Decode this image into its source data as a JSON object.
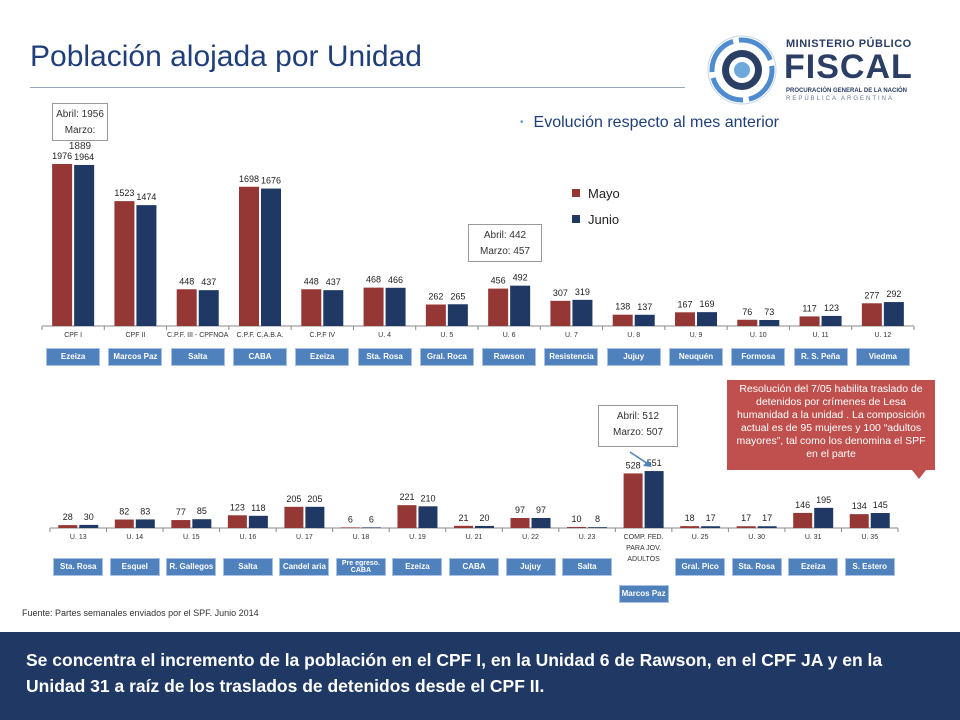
{
  "header": {
    "title": "Población alojada por Unidad",
    "logo": {
      "line1": "MINISTERIO PÚBLICO",
      "line2": "FISCAL",
      "line3": "PROCURACIÓN GENERAL DE LA NACIÓN",
      "line4": "REPÚBLICA ARGENTINA",
      "icon": "sun-emblem-icon"
    }
  },
  "bullet": "Evolución respecto al mes anterior",
  "colors": {
    "mayo": "#953735",
    "junio": "#1f3864",
    "tag": "#4f81bd",
    "footer": "#1f3864",
    "red_box": "#c0504d"
  },
  "callouts": [
    {
      "line1": "Abril: 1956",
      "line2": "Marzo: 1889"
    },
    {
      "line1": "Abril: 442",
      "line2": "Marzo: 457"
    },
    {
      "line1": "Abril: 512",
      "line2": "Marzo: 507"
    }
  ],
  "chart_data": [
    {
      "type": "bar",
      "categories": [
        "CPF I",
        "CPF II",
        "C.P.F. III - CPFNOA",
        "C.P.F. C.A.B.A.",
        "C.P.F IV",
        "U. 4",
        "U. 5",
        "U. 6",
        "U. 7",
        "U. 8",
        "U. 9",
        "U. 10",
        "U. 11",
        "U. 12"
      ],
      "series": [
        {
          "name": "Mayo",
          "values": [
            1976,
            1523,
            448,
            1698,
            448,
            468,
            262,
            456,
            307,
            138,
            167,
            76,
            117,
            277
          ]
        },
        {
          "name": "Junio",
          "values": [
            1964,
            1474,
            437,
            1676,
            437,
            466,
            265,
            492,
            319,
            137,
            169,
            73,
            123,
            292
          ]
        }
      ],
      "locations": [
        "Ezeiza",
        "Marcos Paz",
        "Salta",
        "CABA",
        "Ezeiza",
        "Sta. Rosa",
        "Gral. Roca",
        "Rawson",
        "Resistencia",
        "Jujuy",
        "Neuquén",
        "Formosa",
        "R. S. Peña",
        "Viedma"
      ],
      "legend": {
        "position": "right",
        "entries": [
          "Mayo",
          "Junio"
        ]
      },
      "ylim": [
        0,
        2000
      ]
    },
    {
      "type": "bar",
      "categories": [
        "U. 13",
        "U. 14",
        "U. 15",
        "U. 16",
        "U. 17",
        "U. 18",
        "U. 19",
        "U. 21",
        "U. 22",
        "U. 23",
        "COMP. FED. PARA JOV. ADULTOS",
        "U. 25",
        "U. 30",
        "U. 31",
        "U. 35"
      ],
      "series": [
        {
          "name": "Mayo",
          "values": [
            28,
            82,
            77,
            123,
            205,
            6,
            221,
            21,
            97,
            10,
            528,
            18,
            17,
            146,
            134
          ]
        },
        {
          "name": "Junio",
          "values": [
            30,
            83,
            85,
            118,
            205,
            6,
            210,
            20,
            97,
            8,
            551,
            17,
            17,
            195,
            145
          ]
        }
      ],
      "locations": [
        "Sta. Rosa",
        "Esquel",
        "R. Gallegos",
        "Salta",
        "Candel aria",
        "Pre egreso. CABA",
        "Ezeiza",
        "CABA",
        "Jujuy",
        "Salta",
        "Marcos Paz",
        "Gral. Pico",
        "Sta. Rosa",
        "Ezeiza",
        "S. Estero"
      ],
      "ylim": [
        0,
        600
      ]
    }
  ],
  "red_box_text": "Resolución del 7/05 habilita traslado de detenidos por crímenes de Lesa humanidad a la unidad . La composición actual es de 95 mujeres y 100 “adultos mayores”, tal como los denomina el SPF en el parte",
  "source": "Fuente: Partes semanales enviados por el SPF. Junio 2014",
  "footer": "Se concentra el incremento de la población en el CPF I, en la Unidad 6 de Rawson, en el CPF JA y en la Unidad 31 a raíz de los traslados de detenidos desde el CPF II."
}
